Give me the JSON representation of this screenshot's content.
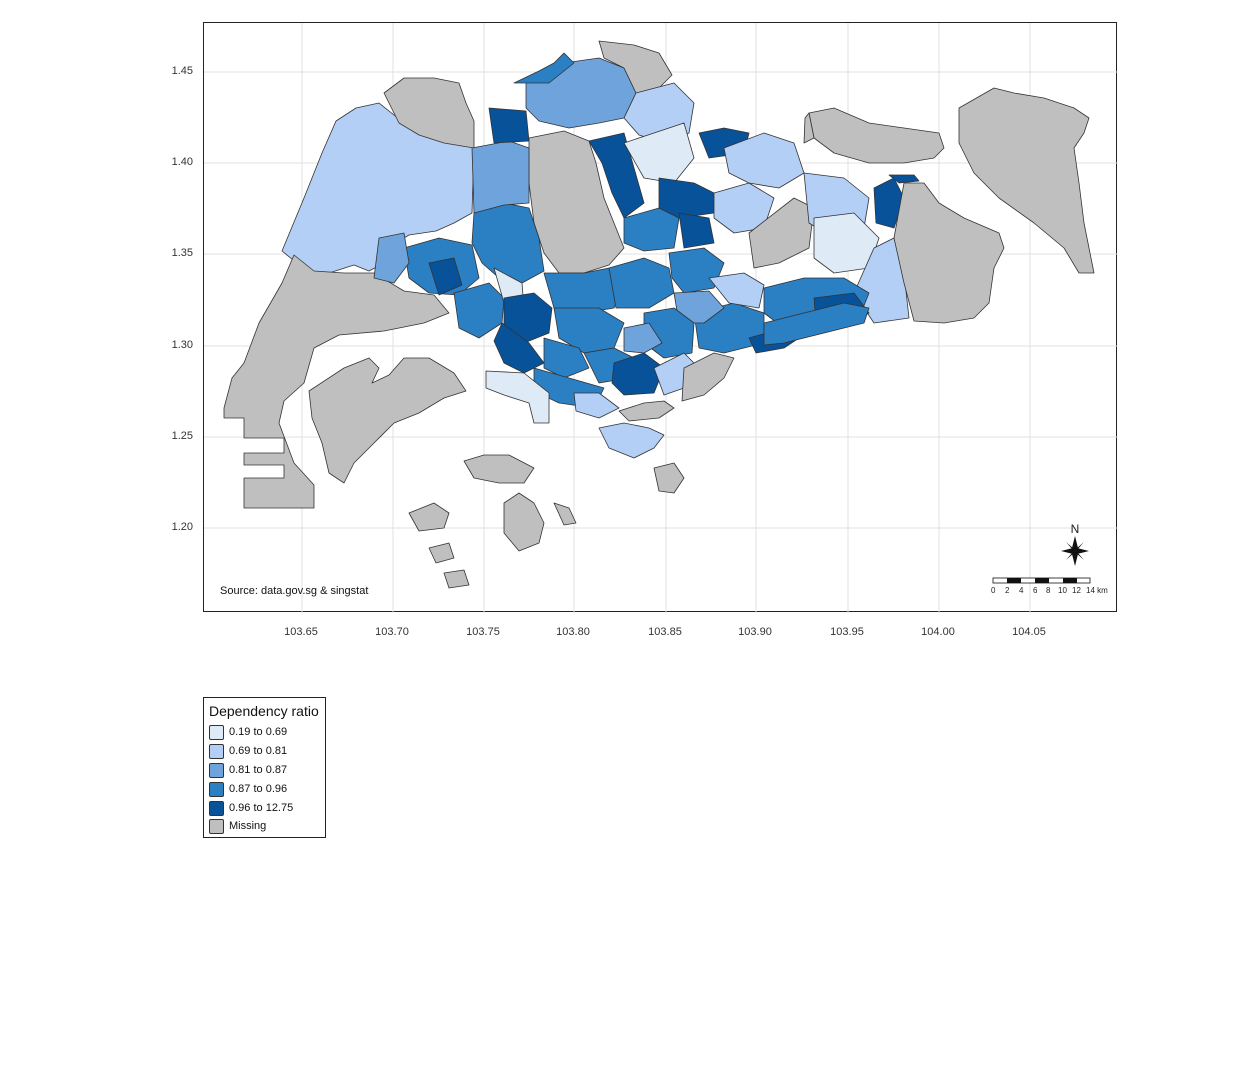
{
  "map": {
    "y_ticks": [
      "1.45",
      "1.40",
      "1.35",
      "1.30",
      "1.25",
      "1.20"
    ],
    "x_ticks": [
      "103.65",
      "103.70",
      "103.75",
      "103.80",
      "103.85",
      "103.90",
      "103.95",
      "104.00",
      "104.05"
    ],
    "source": "Source: data.gov.sg & singstat",
    "north_label": "N",
    "scale_labels": [
      "0",
      "2",
      "4",
      "6",
      "8",
      "10",
      "12",
      "14 km"
    ],
    "colors": {
      "c1": "#deebf7",
      "c2": "#b3cff5",
      "c3": "#6ea3dc",
      "c4": "#2b7fc3",
      "c5": "#08529a",
      "missing": "#bfbfbf",
      "grid": "#e0e0e0"
    }
  },
  "legend": {
    "title": "Dependency ratio",
    "items": [
      {
        "label": "0.19 to 0.69",
        "color": "#deebf7"
      },
      {
        "label": "0.69 to 0.81",
        "color": "#b3cff5"
      },
      {
        "label": "0.81 to 0.87",
        "color": "#6ea3dc"
      },
      {
        "label": "0.87 to 0.96",
        "color": "#2b7fc3"
      },
      {
        "label": "0.96 to 12.75",
        "color": "#08529a"
      },
      {
        "label": "Missing",
        "color": "#bfbfbf"
      }
    ]
  }
}
